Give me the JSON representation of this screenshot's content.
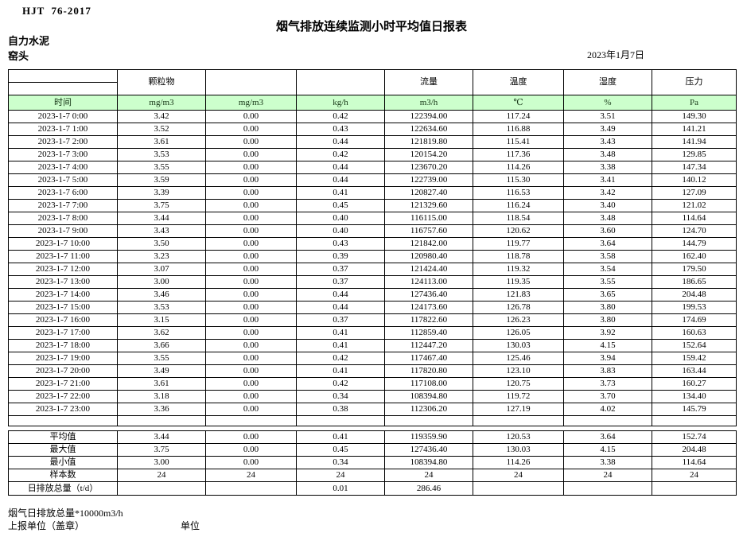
{
  "header": {
    "standard": "HJT  76-2017",
    "title": "烟气排放连续监测小时平均值日报表",
    "company": "自力水泥",
    "station": "窑头",
    "date": "2023年1月7日"
  },
  "colors": {
    "header_row_green": "#ccffcc",
    "border": "#000000"
  },
  "table": {
    "group_headers": [
      "",
      "颗粒物",
      "",
      "",
      "流量",
      "温度",
      "湿度",
      "压力"
    ],
    "unit_headers": [
      "时间",
      "mg/m3",
      "mg/m3",
      "kg/h",
      "m3/h",
      "℃",
      "%",
      "Pa"
    ],
    "rows": [
      [
        "2023-1-7 0:00",
        "3.42",
        "0.00",
        "0.42",
        "122394.00",
        "117.24",
        "3.51",
        "149.30"
      ],
      [
        "2023-1-7 1:00",
        "3.52",
        "0.00",
        "0.43",
        "122634.60",
        "116.88",
        "3.49",
        "141.21"
      ],
      [
        "2023-1-7 2:00",
        "3.61",
        "0.00",
        "0.44",
        "121819.80",
        "115.41",
        "3.43",
        "141.94"
      ],
      [
        "2023-1-7 3:00",
        "3.53",
        "0.00",
        "0.42",
        "120154.20",
        "117.36",
        "3.48",
        "129.85"
      ],
      [
        "2023-1-7 4:00",
        "3.55",
        "0.00",
        "0.44",
        "123670.20",
        "114.26",
        "3.38",
        "147.34"
      ],
      [
        "2023-1-7 5:00",
        "3.59",
        "0.00",
        "0.44",
        "122739.00",
        "115.30",
        "3.41",
        "140.12"
      ],
      [
        "2023-1-7 6:00",
        "3.39",
        "0.00",
        "0.41",
        "120827.40",
        "116.53",
        "3.42",
        "127.09"
      ],
      [
        "2023-1-7 7:00",
        "3.75",
        "0.00",
        "0.45",
        "121329.60",
        "116.24",
        "3.40",
        "121.02"
      ],
      [
        "2023-1-7 8:00",
        "3.44",
        "0.00",
        "0.40",
        "116115.00",
        "118.54",
        "3.48",
        "114.64"
      ],
      [
        "2023-1-7 9:00",
        "3.43",
        "0.00",
        "0.40",
        "116757.60",
        "120.62",
        "3.60",
        "124.70"
      ],
      [
        "2023-1-7 10:00",
        "3.50",
        "0.00",
        "0.43",
        "121842.00",
        "119.77",
        "3.64",
        "144.79"
      ],
      [
        "2023-1-7 11:00",
        "3.23",
        "0.00",
        "0.39",
        "120980.40",
        "118.78",
        "3.58",
        "162.40"
      ],
      [
        "2023-1-7 12:00",
        "3.07",
        "0.00",
        "0.37",
        "121424.40",
        "119.32",
        "3.54",
        "179.50"
      ],
      [
        "2023-1-7 13:00",
        "3.00",
        "0.00",
        "0.37",
        "124113.00",
        "119.35",
        "3.55",
        "186.65"
      ],
      [
        "2023-1-7 14:00",
        "3.46",
        "0.00",
        "0.44",
        "127436.40",
        "121.83",
        "3.65",
        "204.48"
      ],
      [
        "2023-1-7 15:00",
        "3.53",
        "0.00",
        "0.44",
        "124173.60",
        "126.78",
        "3.80",
        "199.53"
      ],
      [
        "2023-1-7 16:00",
        "3.15",
        "0.00",
        "0.37",
        "117822.60",
        "126.23",
        "3.80",
        "174.69"
      ],
      [
        "2023-1-7 17:00",
        "3.62",
        "0.00",
        "0.41",
        "112859.40",
        "126.05",
        "3.92",
        "160.63"
      ],
      [
        "2023-1-7 18:00",
        "3.66",
        "0.00",
        "0.41",
        "112447.20",
        "130.03",
        "4.15",
        "152.64"
      ],
      [
        "2023-1-7 19:00",
        "3.55",
        "0.00",
        "0.42",
        "117467.40",
        "125.46",
        "3.94",
        "159.42"
      ],
      [
        "2023-1-7 20:00",
        "3.49",
        "0.00",
        "0.41",
        "117820.80",
        "123.10",
        "3.83",
        "163.44"
      ],
      [
        "2023-1-7 21:00",
        "3.61",
        "0.00",
        "0.42",
        "117108.00",
        "120.75",
        "3.73",
        "160.27"
      ],
      [
        "2023-1-7 22:00",
        "3.18",
        "0.00",
        "0.34",
        "108394.80",
        "119.72",
        "3.70",
        "134.40"
      ],
      [
        "2023-1-7 23:00",
        "3.36",
        "0.00",
        "0.38",
        "112306.20",
        "127.19",
        "4.02",
        "145.79"
      ]
    ],
    "summary": [
      [
        "平均值",
        "3.44",
        "0.00",
        "0.41",
        "119359.90",
        "120.53",
        "3.64",
        "152.74"
      ],
      [
        "最大值",
        "3.75",
        "0.00",
        "0.45",
        "127436.40",
        "130.03",
        "4.15",
        "204.48"
      ],
      [
        "最小值",
        "3.00",
        "0.00",
        "0.34",
        "108394.80",
        "114.26",
        "3.38",
        "114.64"
      ],
      [
        "样本数",
        "24",
        "24",
        "24",
        "24",
        "24",
        "24",
        "24"
      ],
      [
        "日排放总量（t/d）",
        "",
        "",
        "0.01",
        "286.46",
        "",
        "",
        ""
      ]
    ]
  },
  "footer": {
    "note": "烟气日排放总量*10000m3/h",
    "report_unit_label": "上报单位（盖章）",
    "unit_label": "单位"
  }
}
